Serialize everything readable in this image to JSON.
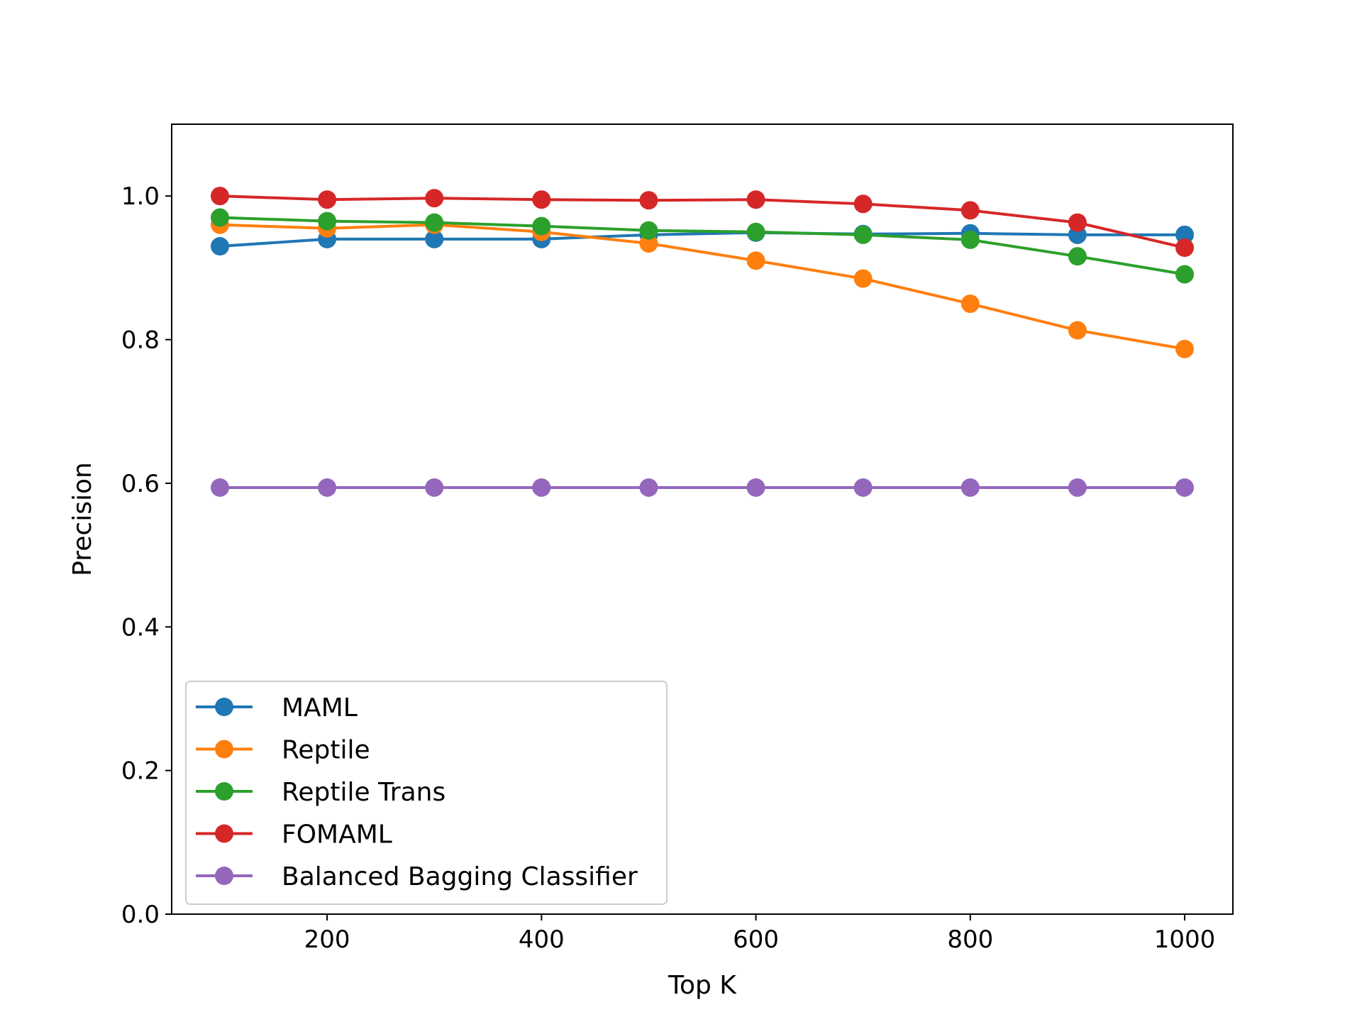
{
  "chart_data": {
    "type": "line",
    "title": "",
    "xlabel": "Top K",
    "ylabel": "Precision",
    "xlim": [
      55,
      1045
    ],
    "ylim": [
      0.0,
      1.1
    ],
    "xticks": [
      200,
      400,
      600,
      800,
      1000
    ],
    "yticks": [
      0.0,
      0.2,
      0.4,
      0.6,
      0.8,
      1.0
    ],
    "xtick_labels": [
      "200",
      "400",
      "600",
      "800",
      "1000"
    ],
    "ytick_labels": [
      "0.0",
      "0.2",
      "0.4",
      "0.6",
      "0.8",
      "1.0"
    ],
    "grid": false,
    "legend_position": "lower-left",
    "x": [
      100,
      200,
      300,
      400,
      500,
      600,
      700,
      800,
      900,
      1000
    ],
    "series": [
      {
        "name": "MAML",
        "color": "#1f77b4",
        "values": [
          0.93,
          0.94,
          0.94,
          0.94,
          0.946,
          0.949,
          0.947,
          0.948,
          0.946,
          0.946
        ]
      },
      {
        "name": "Reptile",
        "color": "#ff7f0e",
        "values": [
          0.96,
          0.955,
          0.96,
          0.95,
          0.934,
          0.91,
          0.885,
          0.85,
          0.813,
          0.787
        ]
      },
      {
        "name": "Reptile Trans",
        "color": "#2ca02c",
        "values": [
          0.97,
          0.965,
          0.963,
          0.958,
          0.952,
          0.95,
          0.946,
          0.939,
          0.916,
          0.891
        ]
      },
      {
        "name": "FOMAML",
        "color": "#d62728",
        "values": [
          1.0,
          0.995,
          0.997,
          0.995,
          0.994,
          0.995,
          0.989,
          0.98,
          0.963,
          0.928
        ]
      },
      {
        "name": "Balanced Bagging Classifier",
        "color": "#9467bd",
        "values": [
          0.594,
          0.594,
          0.594,
          0.594,
          0.594,
          0.594,
          0.594,
          0.594,
          0.594,
          0.594
        ]
      }
    ]
  }
}
